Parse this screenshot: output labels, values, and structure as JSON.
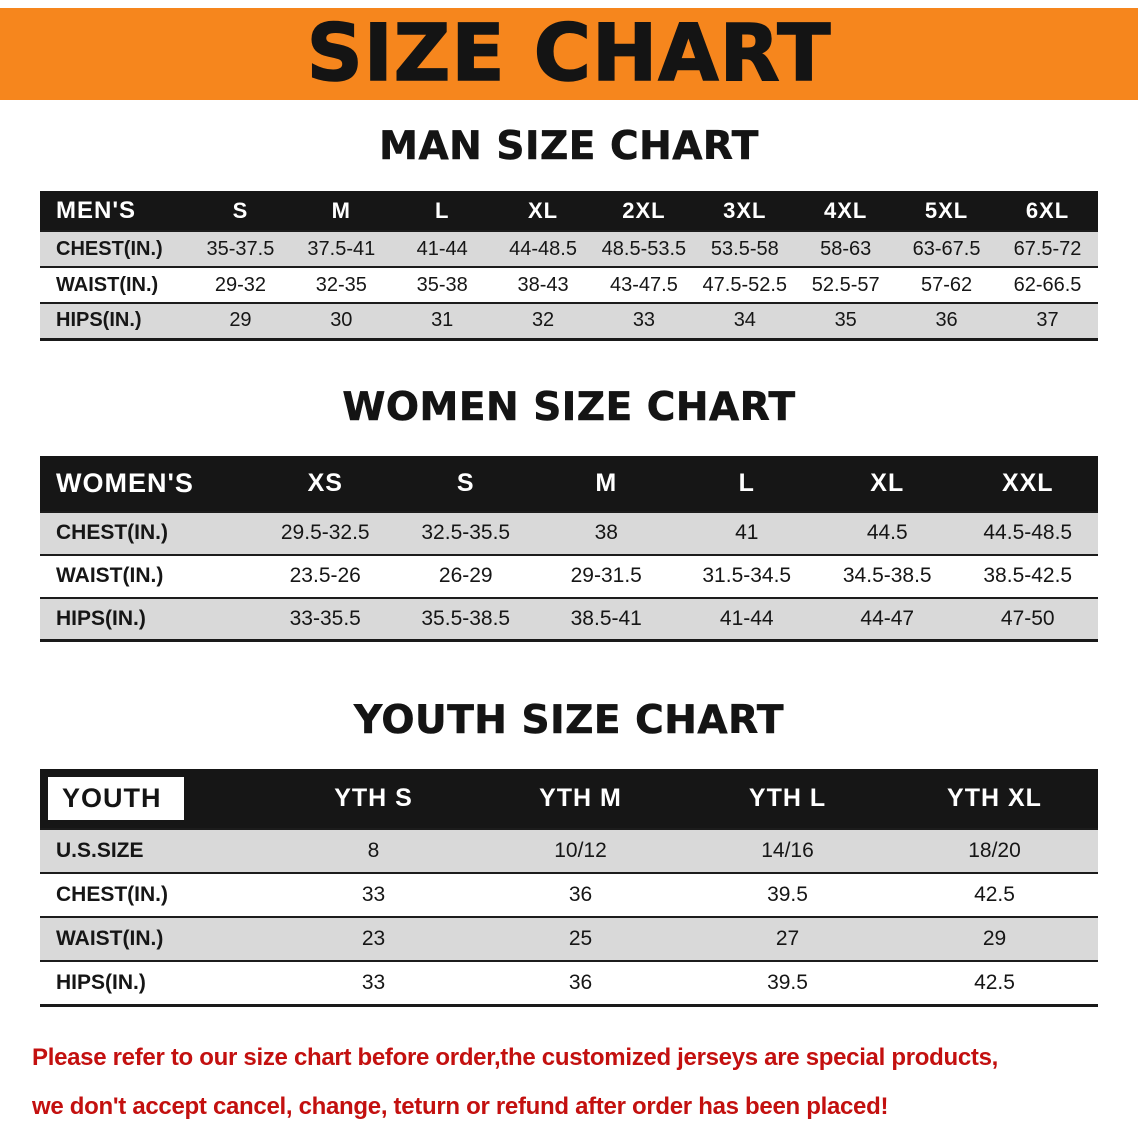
{
  "banner": {
    "title": "SIZE CHART",
    "background": "#f6861d",
    "text_color": "#141414"
  },
  "sections": [
    {
      "heading": "MAN SIZE CHART",
      "table": {
        "header": [
          "MEN'S",
          "S",
          "M",
          "L",
          "XL",
          "2XL",
          "3XL",
          "4XL",
          "5XL",
          "6XL"
        ],
        "rows": [
          [
            "CHEST(IN.)",
            "35-37.5",
            "37.5-41",
            "41-44",
            "44-48.5",
            "48.5-53.5",
            "53.5-58",
            "58-63",
            "63-67.5",
            "67.5-72"
          ],
          [
            "WAIST(IN.)",
            "29-32",
            "32-35",
            "35-38",
            "38-43",
            "43-47.5",
            "47.5-52.5",
            "52.5-57",
            "57-62",
            "62-66.5"
          ],
          [
            "HIPS(IN.)",
            "29",
            "30",
            "31",
            "32",
            "33",
            "34",
            "35",
            "36",
            "37"
          ]
        ]
      }
    },
    {
      "heading": "WOMEN SIZE CHART",
      "table": {
        "header": [
          "WOMEN'S",
          "XS",
          "S",
          "M",
          "L",
          "XL",
          "XXL"
        ],
        "rows": [
          [
            "CHEST(IN.)",
            "29.5-32.5",
            "32.5-35.5",
            "38",
            "41",
            "44.5",
            "44.5-48.5"
          ],
          [
            "WAIST(IN.)",
            "23.5-26",
            "26-29",
            "29-31.5",
            "31.5-34.5",
            "34.5-38.5",
            "38.5-42.5"
          ],
          [
            "HIPS(IN.)",
            "33-35.5",
            "35.5-38.5",
            "38.5-41",
            "41-44",
            "44-47",
            "47-50"
          ]
        ]
      }
    },
    {
      "heading": "YOUTH SIZE CHART",
      "table": {
        "header": [
          "YOUTH",
          "YTH S",
          "YTH M",
          "YTH L",
          "YTH XL"
        ],
        "rows": [
          [
            "U.S.SIZE",
            "8",
            "10/12",
            "14/16",
            "18/20"
          ],
          [
            "CHEST(IN.)",
            "33",
            "36",
            "39.5",
            "42.5"
          ],
          [
            "WAIST(IN.)",
            "23",
            "25",
            "27",
            "29"
          ],
          [
            "HIPS(IN.)",
            "33",
            "36",
            "39.5",
            "42.5"
          ]
        ]
      }
    }
  ],
  "footer": {
    "lines": [
      "Please refer to our size chart before order,the customized jerseys are special products,",
      "we don't accept cancel, change, teturn or refund after order has been placed!"
    ],
    "text_color": "#c3100f"
  },
  "colors": {
    "banner_orange": "#f6861d",
    "table_header_bg": "#161616",
    "row_stripe": "#d9d9d9",
    "footer_red": "#c3100f"
  }
}
